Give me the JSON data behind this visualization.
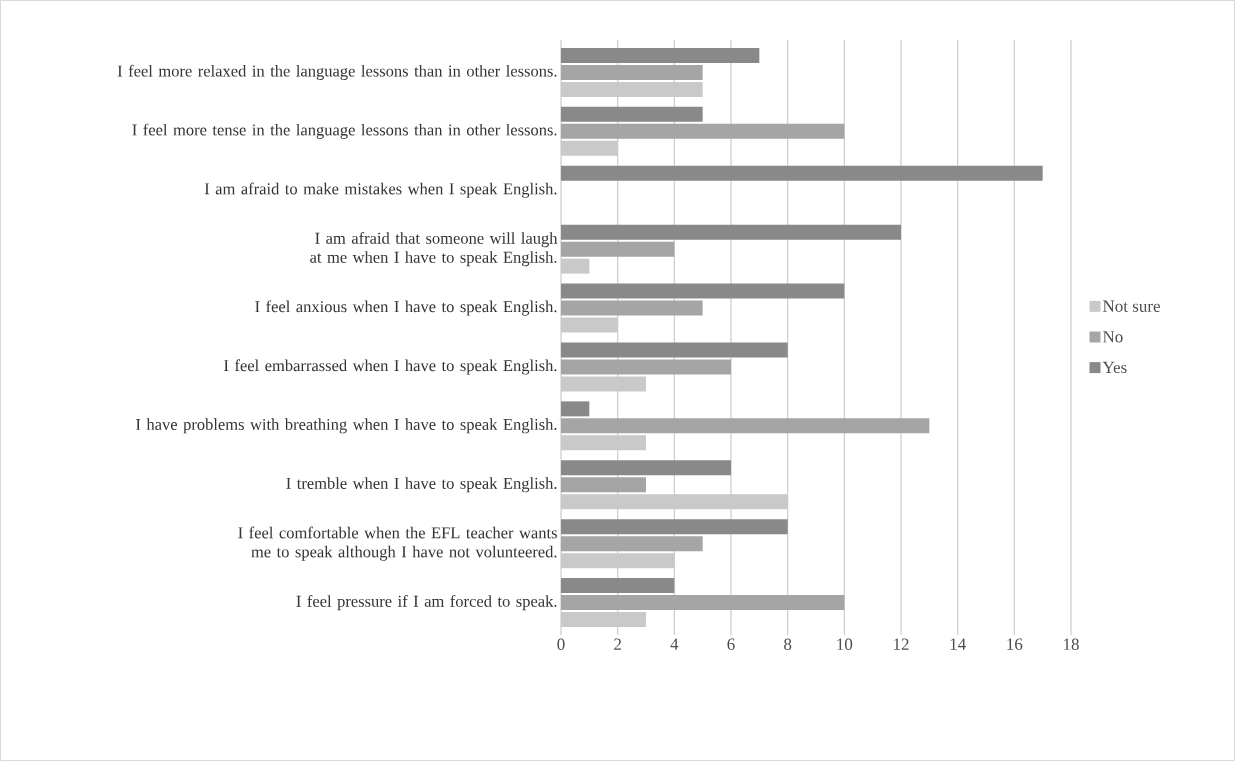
{
  "chart_data": {
    "type": "bar",
    "orientation": "horizontal",
    "categories": [
      "I feel more relaxed in the language lessons than in other lessons.",
      "I feel more tense in the language lessons than in other lessons.",
      "I am afraid to make mistakes when I speak English.",
      "I am afraid that someone will laugh at me when I have to speak English.",
      "I feel anxious when I have to speak English.",
      "I feel embarrassed when I have to speak English.",
      "I have problems with breathing when I have to speak English.",
      "I tremble when I have to speak English.",
      "I feel comfortable when the EFL teacher wants me to speak although I have not volunteered.",
      "I feel pressure if I am forced to speak."
    ],
    "series": [
      {
        "name": "Not sure",
        "color": "#c9c9c9",
        "values": [
          5,
          2,
          0,
          1,
          2,
          3,
          3,
          8,
          4,
          3
        ]
      },
      {
        "name": "No",
        "color": "#a5a5a5",
        "values": [
          5,
          10,
          0,
          4,
          5,
          6,
          13,
          3,
          5,
          10
        ]
      },
      {
        "name": "Yes",
        "color": "#898989",
        "values": [
          7,
          5,
          17,
          12,
          10,
          8,
          1,
          6,
          8,
          4
        ]
      }
    ],
    "xlim": [
      0,
      18
    ],
    "xticks": [
      0,
      2,
      4,
      6,
      8,
      10,
      12,
      14,
      16,
      18
    ],
    "grid": "x",
    "legend": "right"
  }
}
